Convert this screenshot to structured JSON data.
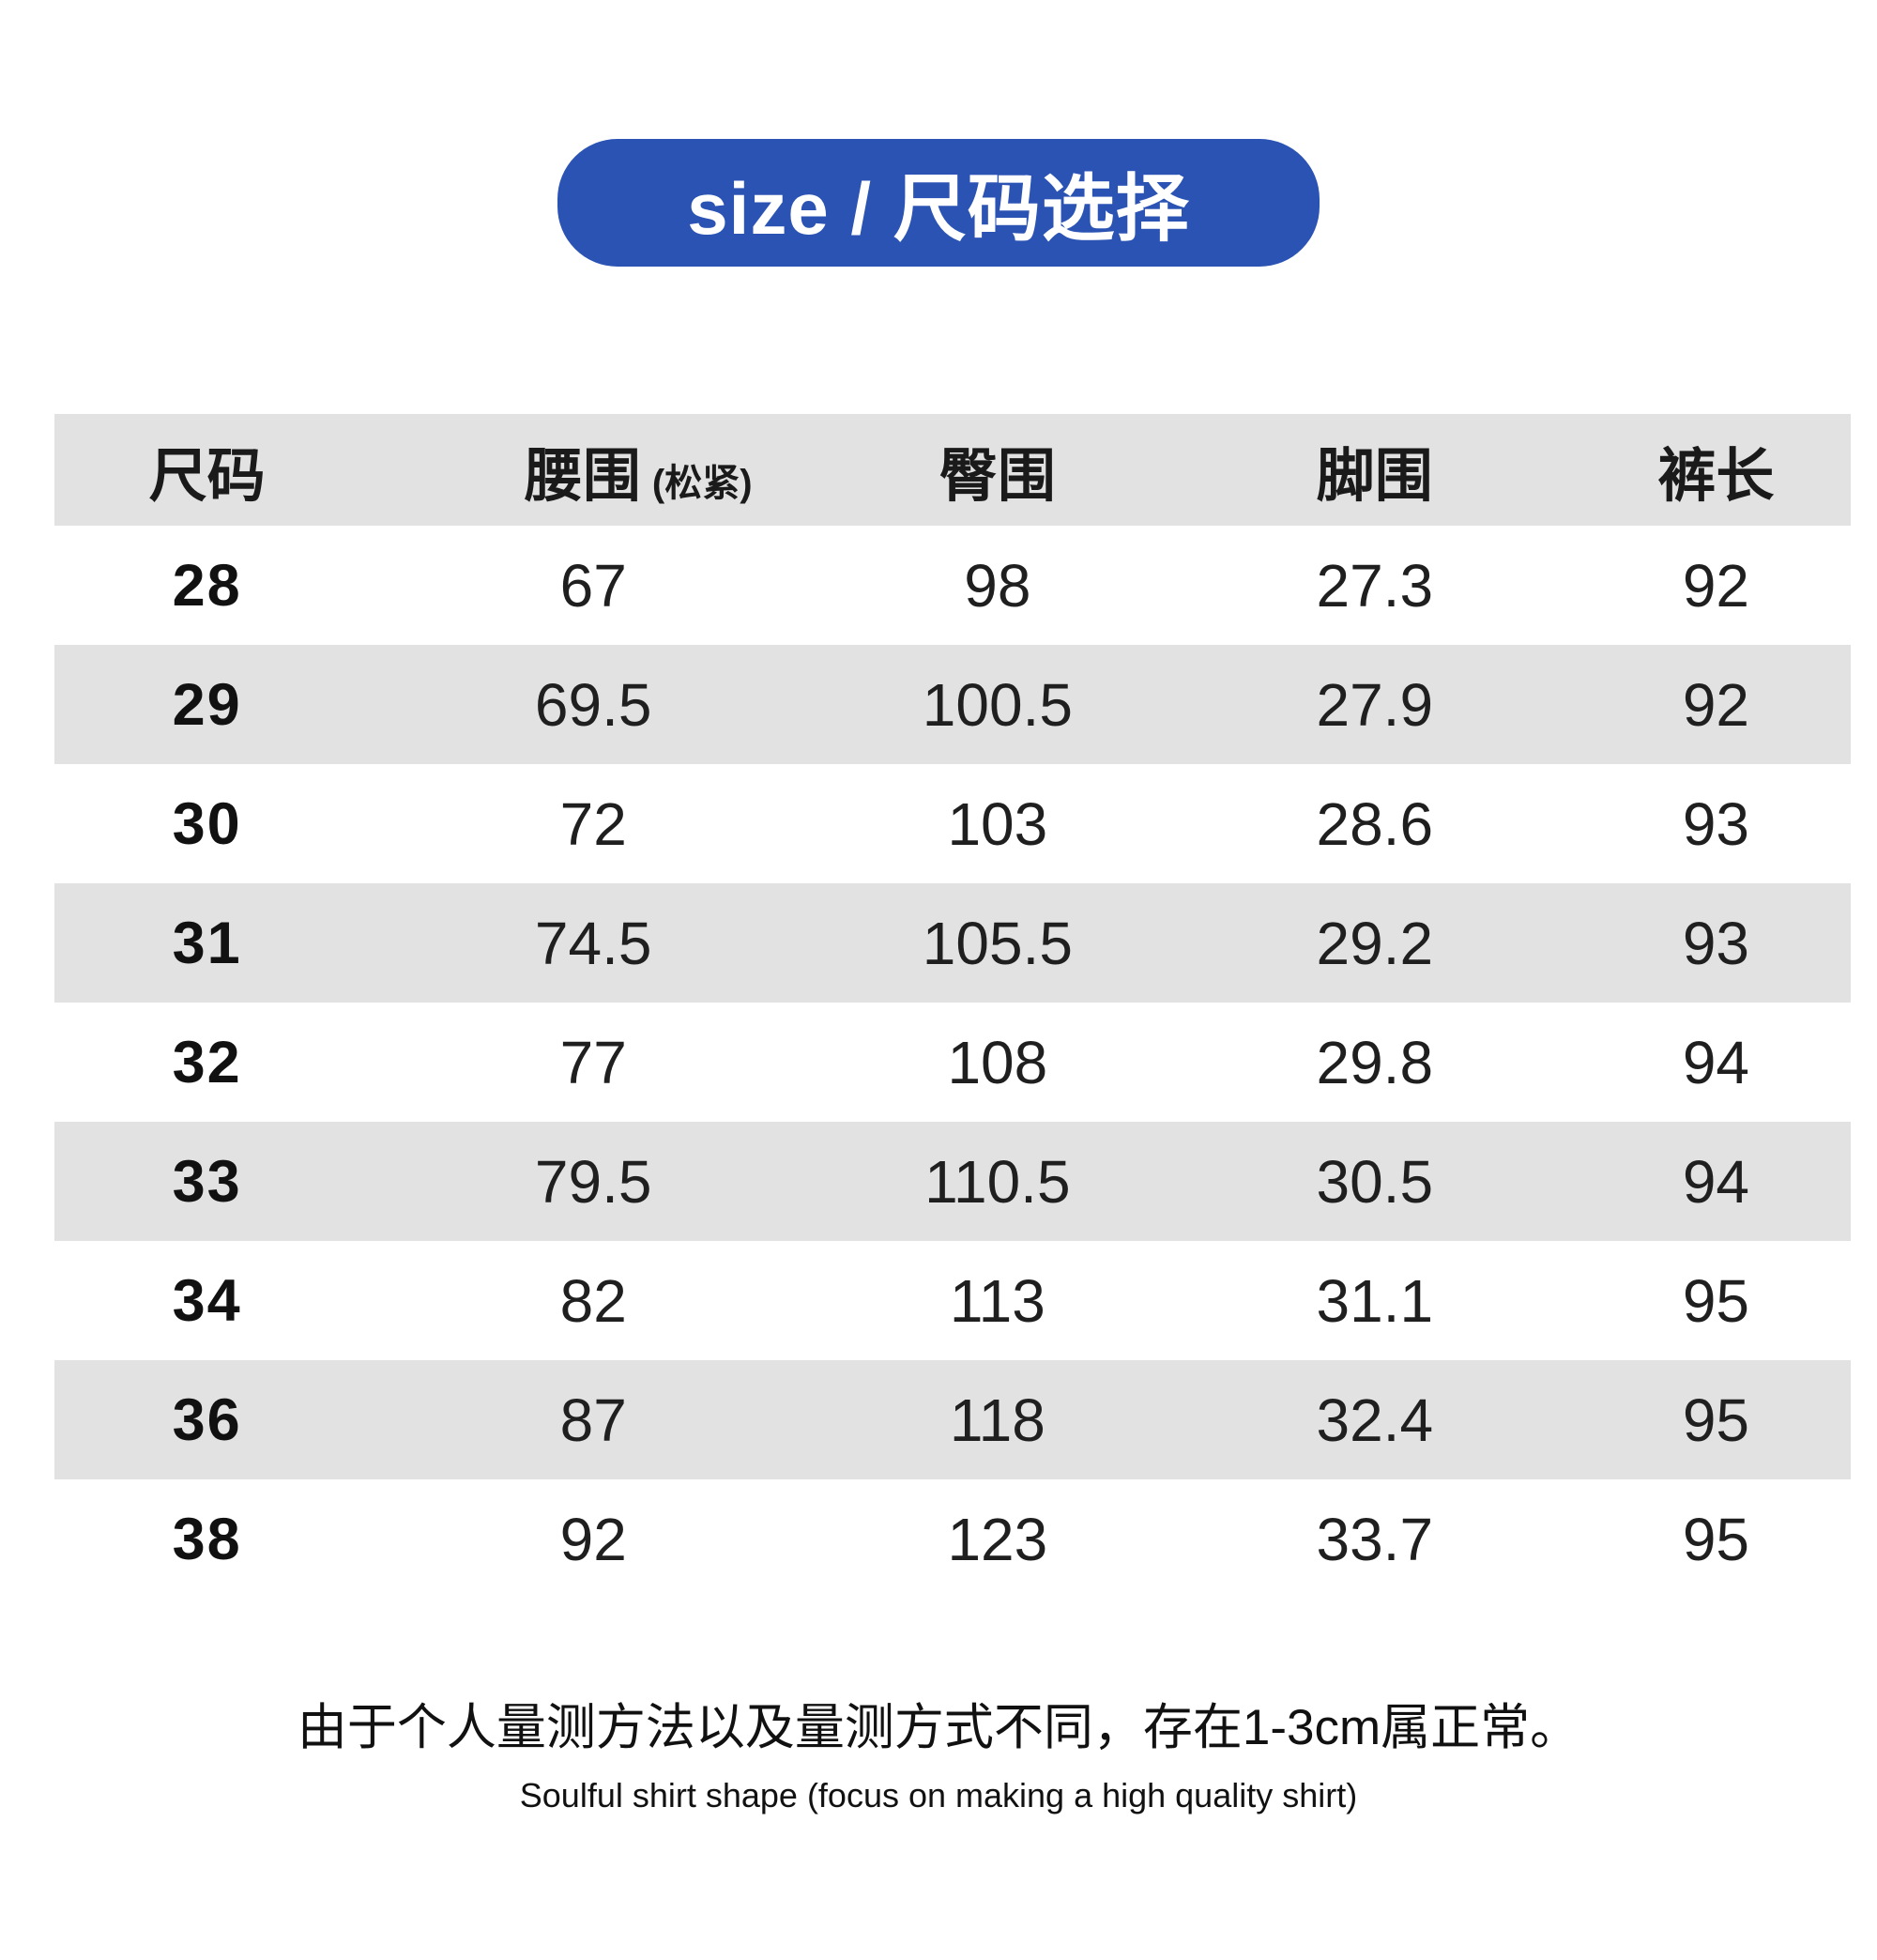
{
  "colors": {
    "accent_blue": "#2a53b4",
    "stripe_gray": "#e2e2e2",
    "text_dark": "#1a1a1a",
    "badge_text": "#ffffff"
  },
  "header_badge": {
    "label": "size / 尺码选择"
  },
  "table": {
    "columns": [
      {
        "label": "尺码",
        "sub": ""
      },
      {
        "label": "腰围",
        "sub": "(松紧)"
      },
      {
        "label": "臀围",
        "sub": ""
      },
      {
        "label": "脚围",
        "sub": ""
      },
      {
        "label": "裤长",
        "sub": ""
      }
    ],
    "rows": [
      {
        "size": "28",
        "waist": "67",
        "hip": "98",
        "leg": "27.3",
        "length": "92"
      },
      {
        "size": "29",
        "waist": "69.5",
        "hip": "100.5",
        "leg": "27.9",
        "length": "92"
      },
      {
        "size": "30",
        "waist": "72",
        "hip": "103",
        "leg": "28.6",
        "length": "93"
      },
      {
        "size": "31",
        "waist": "74.5",
        "hip": "105.5",
        "leg": "29.2",
        "length": "93"
      },
      {
        "size": "32",
        "waist": "77",
        "hip": "108",
        "leg": "29.8",
        "length": "94"
      },
      {
        "size": "33",
        "waist": "79.5",
        "hip": "110.5",
        "leg": "30.5",
        "length": "94"
      },
      {
        "size": "34",
        "waist": "82",
        "hip": "113",
        "leg": "31.1",
        "length": "95"
      },
      {
        "size": "36",
        "waist": "87",
        "hip": "118",
        "leg": "32.4",
        "length": "95"
      },
      {
        "size": "38",
        "waist": "92",
        "hip": "123",
        "leg": "33.7",
        "length": "95"
      }
    ]
  },
  "footer": {
    "note_cn": "由于个人量测方法以及量测方式不同，存在1-3cm属正常。",
    "note_en": "Soulful shirt shape (focus on making a high quality shirt)"
  }
}
